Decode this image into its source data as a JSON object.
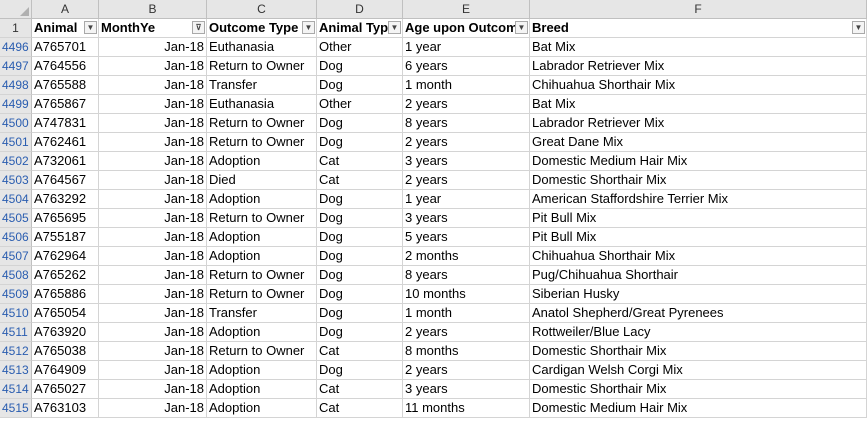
{
  "columns": [
    "A",
    "B",
    "C",
    "D",
    "E",
    "F"
  ],
  "header_row_num": "1",
  "headers": [
    "Animal",
    "MonthYe",
    "Outcome Type",
    "Animal Typ",
    "Age upon Outcom",
    "Breed"
  ],
  "icons": {
    "filter": "filter-dropdown-icon",
    "filter_active": "filter-active-icon"
  },
  "rows": [
    {
      "n": "4496",
      "id": "A765701",
      "date": "Jan-18",
      "outcome": "Euthanasia",
      "type": "Other",
      "age": "1 year",
      "breed": "Bat Mix"
    },
    {
      "n": "4497",
      "id": "A764556",
      "date": "Jan-18",
      "outcome": "Return to Owner",
      "type": "Dog",
      "age": "6 years",
      "breed": "Labrador Retriever Mix"
    },
    {
      "n": "4498",
      "id": "A765588",
      "date": "Jan-18",
      "outcome": "Transfer",
      "type": "Dog",
      "age": "1 month",
      "breed": "Chihuahua Shorthair Mix"
    },
    {
      "n": "4499",
      "id": "A765867",
      "date": "Jan-18",
      "outcome": "Euthanasia",
      "type": "Other",
      "age": "2 years",
      "breed": "Bat Mix"
    },
    {
      "n": "4500",
      "id": "A747831",
      "date": "Jan-18",
      "outcome": "Return to Owner",
      "type": "Dog",
      "age": "8 years",
      "breed": "Labrador Retriever Mix"
    },
    {
      "n": "4501",
      "id": "A762461",
      "date": "Jan-18",
      "outcome": "Return to Owner",
      "type": "Dog",
      "age": "2 years",
      "breed": "Great Dane Mix"
    },
    {
      "n": "4502",
      "id": "A732061",
      "date": "Jan-18",
      "outcome": "Adoption",
      "type": "Cat",
      "age": "3 years",
      "breed": "Domestic Medium Hair Mix"
    },
    {
      "n": "4503",
      "id": "A764567",
      "date": "Jan-18",
      "outcome": "Died",
      "type": "Cat",
      "age": "2 years",
      "breed": "Domestic Shorthair Mix"
    },
    {
      "n": "4504",
      "id": "A763292",
      "date": "Jan-18",
      "outcome": "Adoption",
      "type": "Dog",
      "age": "1 year",
      "breed": "American Staffordshire Terrier Mix"
    },
    {
      "n": "4505",
      "id": "A765695",
      "date": "Jan-18",
      "outcome": "Return to Owner",
      "type": "Dog",
      "age": "3 years",
      "breed": "Pit Bull Mix"
    },
    {
      "n": "4506",
      "id": "A755187",
      "date": "Jan-18",
      "outcome": "Adoption",
      "type": "Dog",
      "age": "5 years",
      "breed": "Pit Bull Mix"
    },
    {
      "n": "4507",
      "id": "A762964",
      "date": "Jan-18",
      "outcome": "Adoption",
      "type": "Dog",
      "age": "2 months",
      "breed": "Chihuahua Shorthair Mix"
    },
    {
      "n": "4508",
      "id": "A765262",
      "date": "Jan-18",
      "outcome": "Return to Owner",
      "type": "Dog",
      "age": "8 years",
      "breed": "Pug/Chihuahua Shorthair"
    },
    {
      "n": "4509",
      "id": "A765886",
      "date": "Jan-18",
      "outcome": "Return to Owner",
      "type": "Dog",
      "age": "10 months",
      "breed": "Siberian Husky"
    },
    {
      "n": "4510",
      "id": "A765054",
      "date": "Jan-18",
      "outcome": "Transfer",
      "type": "Dog",
      "age": "1 month",
      "breed": "Anatol Shepherd/Great Pyrenees"
    },
    {
      "n": "4511",
      "id": "A763920",
      "date": "Jan-18",
      "outcome": "Adoption",
      "type": "Dog",
      "age": "2 years",
      "breed": "Rottweiler/Blue Lacy"
    },
    {
      "n": "4512",
      "id": "A765038",
      "date": "Jan-18",
      "outcome": "Return to Owner",
      "type": "Cat",
      "age": "8 months",
      "breed": "Domestic Shorthair Mix"
    },
    {
      "n": "4513",
      "id": "A764909",
      "date": "Jan-18",
      "outcome": "Adoption",
      "type": "Dog",
      "age": "2 years",
      "breed": "Cardigan Welsh Corgi Mix"
    },
    {
      "n": "4514",
      "id": "A765027",
      "date": "Jan-18",
      "outcome": "Adoption",
      "type": "Cat",
      "age": "3 years",
      "breed": "Domestic Shorthair Mix"
    },
    {
      "n": "4515",
      "id": "A763103",
      "date": "Jan-18",
      "outcome": "Adoption",
      "type": "Cat",
      "age": "11 months",
      "breed": "Domestic Medium Hair Mix"
    }
  ]
}
